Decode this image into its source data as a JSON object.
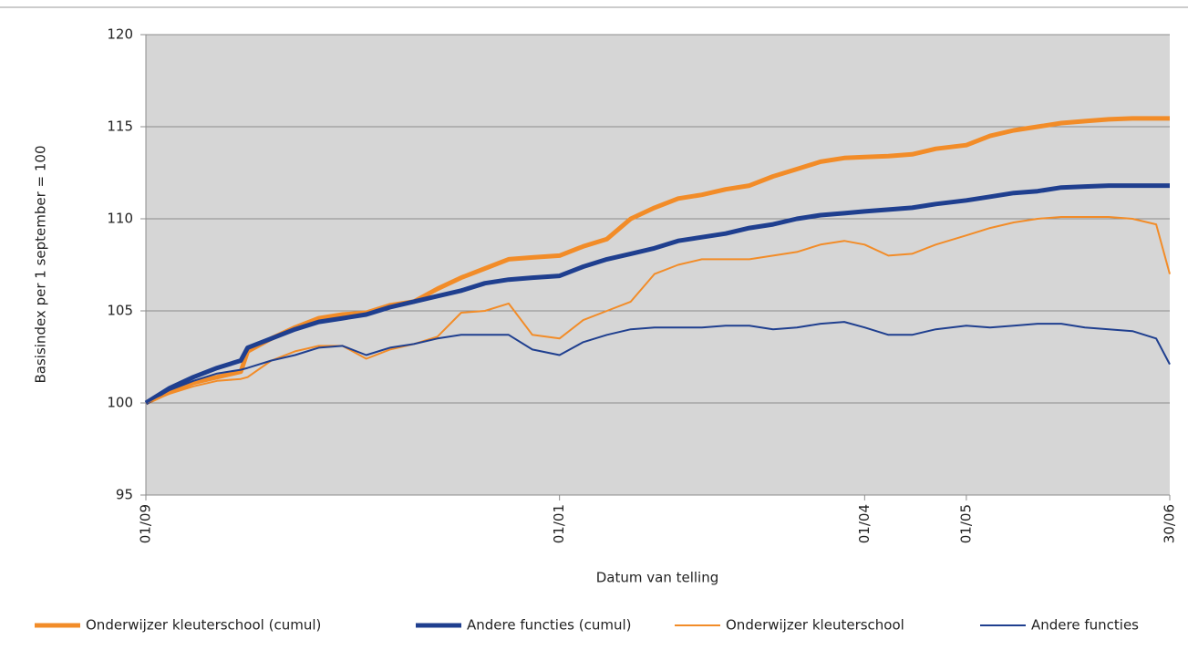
{
  "chart_data": {
    "type": "line",
    "ylabel": "Basisindex per 1 september = 100",
    "xlabel": "Datum van telling",
    "x": [
      "01/09",
      "08/09",
      "15/09",
      "22/09",
      "29/09",
      "01/10",
      "08/10",
      "15/10",
      "22/10",
      "29/10",
      "05/11",
      "12/11",
      "19/11",
      "26/11",
      "03/12",
      "10/12",
      "17/12",
      "24/12",
      "01/01",
      "08/01",
      "15/01",
      "22/01",
      "29/01",
      "05/02",
      "12/02",
      "19/02",
      "26/02",
      "05/03",
      "12/03",
      "19/03",
      "26/03",
      "01/04",
      "08/04",
      "15/04",
      "22/04",
      "01/05",
      "08/05",
      "15/05",
      "22/05",
      "29/05",
      "05/06",
      "12/06",
      "19/06",
      "26/06",
      "30/06"
    ],
    "xlim": [
      "01/09",
      "30/06"
    ],
    "xticks": [
      "01/09",
      "01/01",
      "01/04",
      "01/05",
      "30/06"
    ],
    "ylim": [
      95,
      120
    ],
    "yticks": [
      95,
      100,
      105,
      110,
      115,
      120
    ],
    "grid": true,
    "legend": "bottom",
    "series": [
      {
        "name": "Onderwijzer kleuterschool (cumul)",
        "color": "#f28c28",
        "width": 5,
        "values": [
          100,
          100.6,
          101.1,
          101.4,
          101.7,
          102.8,
          103.5,
          104.1,
          104.6,
          104.8,
          104.9,
          105.3,
          105.5,
          106.2,
          106.8,
          107.3,
          107.8,
          107.9,
          108.0,
          108.5,
          108.9,
          110.0,
          110.6,
          111.1,
          111.3,
          111.6,
          111.8,
          112.3,
          112.7,
          113.1,
          113.3,
          113.35,
          113.4,
          113.5,
          113.8,
          114.0,
          114.5,
          114.8,
          115.0,
          115.2,
          115.3,
          115.4,
          115.45,
          115.45,
          115.45
        ]
      },
      {
        "name": "Andere functies (cumul)",
        "color": "#1f3f8f",
        "width": 5,
        "values": [
          100,
          100.8,
          101.4,
          101.9,
          102.3,
          103.0,
          103.5,
          104.0,
          104.4,
          104.6,
          104.8,
          105.2,
          105.5,
          105.8,
          106.1,
          106.5,
          106.7,
          106.8,
          106.9,
          107.4,
          107.8,
          108.1,
          108.4,
          108.8,
          109.0,
          109.2,
          109.5,
          109.7,
          110.0,
          110.2,
          110.3,
          110.4,
          110.5,
          110.6,
          110.8,
          111.0,
          111.2,
          111.4,
          111.5,
          111.7,
          111.75,
          111.8,
          111.8,
          111.8,
          111.8
        ]
      },
      {
        "name": "Onderwijzer kleuterschool",
        "color": "#f28c28",
        "width": 2,
        "values": [
          100,
          100.5,
          100.9,
          101.2,
          101.3,
          101.4,
          102.3,
          102.8,
          103.1,
          103.1,
          102.4,
          102.9,
          103.2,
          103.6,
          104.9,
          105.0,
          105.4,
          103.7,
          103.5,
          104.5,
          105.0,
          105.5,
          107.0,
          107.5,
          107.8,
          107.8,
          107.8,
          108.0,
          108.2,
          108.6,
          108.8,
          108.6,
          108.0,
          108.1,
          108.6,
          109.1,
          109.5,
          109.8,
          110.0,
          110.1,
          110.1,
          110.1,
          110.0,
          109.7,
          107.0
        ]
      },
      {
        "name": "Andere functies",
        "color": "#1f3f8f",
        "width": 2,
        "values": [
          100,
          100.7,
          101.2,
          101.6,
          101.8,
          101.9,
          102.3,
          102.6,
          103.0,
          103.1,
          102.6,
          103.0,
          103.2,
          103.5,
          103.7,
          103.7,
          103.7,
          102.9,
          102.6,
          103.3,
          103.7,
          104.0,
          104.1,
          104.1,
          104.1,
          104.2,
          104.2,
          104.0,
          104.1,
          104.3,
          104.4,
          104.1,
          103.7,
          103.7,
          104.0,
          104.2,
          104.1,
          104.2,
          104.3,
          104.3,
          104.1,
          104.0,
          103.9,
          103.5,
          102.1
        ]
      }
    ]
  }
}
